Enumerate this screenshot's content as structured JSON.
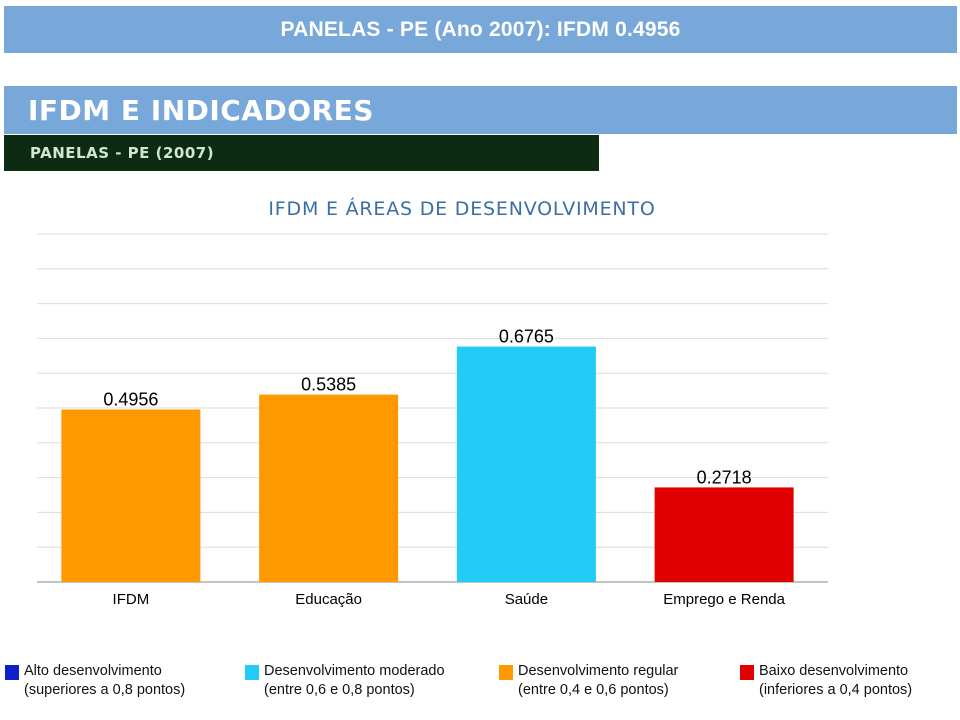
{
  "top_banner": {
    "title": "PANELAS - PE (Ano 2007): IFDM 0.4956"
  },
  "section": {
    "title": "IFDM E INDICADORES",
    "subtitle": "PANELAS - PE (2007)"
  },
  "chart_data": {
    "type": "bar",
    "title": "IFDM E ÁREAS DE DESENVOLVIMENTO",
    "categories": [
      "IFDM",
      "Educação",
      "Saúde",
      "Emprego e Renda"
    ],
    "values": [
      0.4956,
      0.5385,
      0.6765,
      0.2718
    ],
    "value_labels": [
      "0.4956",
      "0.5385",
      "0.6765",
      "0.2718"
    ],
    "bar_colors": [
      "#ff9900",
      "#ff9900",
      "#21ccf7",
      "#e00000"
    ],
    "xlabel": "",
    "ylabel": "",
    "ylim": [
      0,
      1
    ],
    "grid": true,
    "gridline_step": 0.1
  },
  "legend": [
    {
      "color": "#1020c8",
      "line1": "Alto desenvolvimento",
      "line2": "(superiores a 0,8 pontos)"
    },
    {
      "color": "#21ccf7",
      "line1": "Desenvolvimento moderado",
      "line2": "(entre 0,6 e 0,8 pontos)"
    },
    {
      "color": "#ff9900",
      "line1": "Desenvolvimento regular",
      "line2": "(entre 0,4 e 0,6 pontos)"
    },
    {
      "color": "#e00000",
      "line1": "Baixo desenvolvimento",
      "line2": "(inferiores a 0,4 pontos)"
    }
  ]
}
